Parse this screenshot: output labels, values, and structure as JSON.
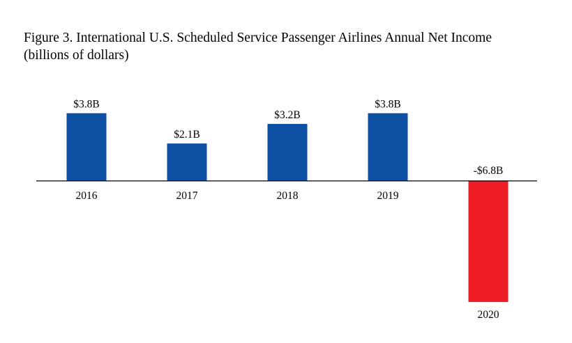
{
  "chart_data": {
    "type": "bar",
    "title": "Figure 3. International U.S. Scheduled Service Passenger Airlines Annual Net Income",
    "subtitle": "(billions of dollars)",
    "xlabel": "",
    "ylabel": "",
    "categories": [
      "2016",
      "2017",
      "2018",
      "2019",
      "2020"
    ],
    "values": [
      3.8,
      2.1,
      3.2,
      3.8,
      -6.8
    ],
    "data_labels": [
      "$3.8B",
      "$2.1B",
      "$3.2B",
      "$3.8B",
      "-$6.8B"
    ],
    "ylim": [
      -6.8,
      3.8
    ],
    "grid": false,
    "legend": "none",
    "colors": {
      "positive": "#0d4fa3",
      "negative": "#ee1c25",
      "axis": "#000000"
    }
  }
}
